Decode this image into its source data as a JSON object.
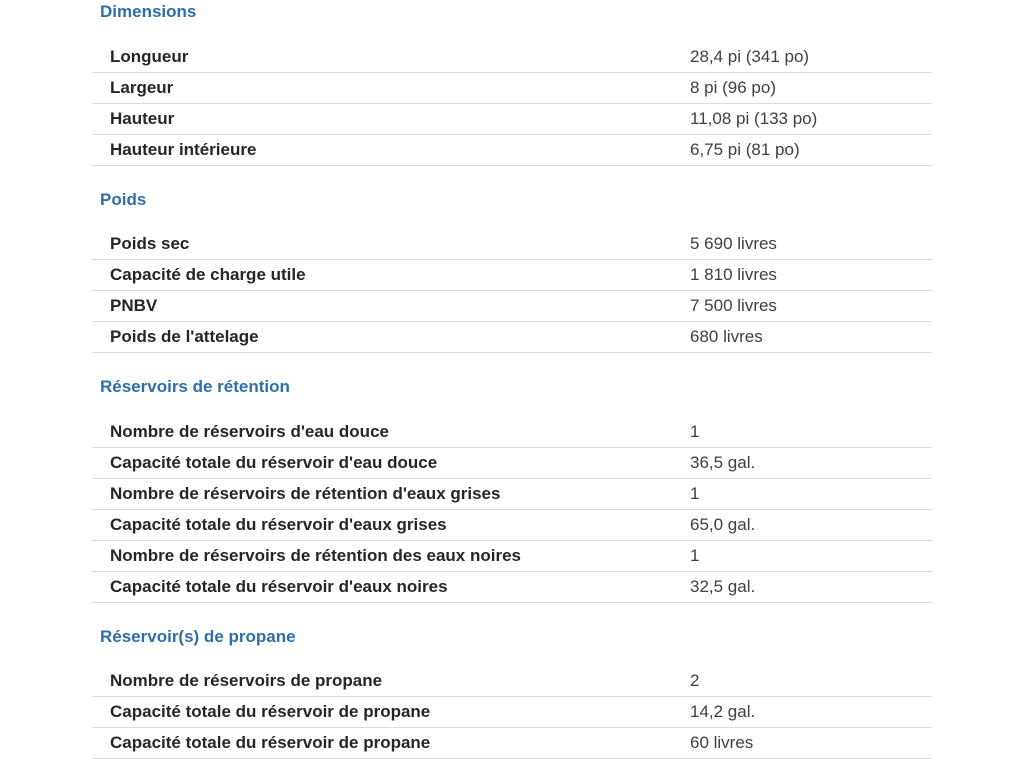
{
  "sections": [
    {
      "title": "Dimensions",
      "rows": [
        {
          "label": "Longueur",
          "value": "28,4 pi (341 po)"
        },
        {
          "label": "Largeur",
          "value": "8 pi (96 po)"
        },
        {
          "label": "Hauteur",
          "value": "11,08 pi (133 po)"
        },
        {
          "label": "Hauteur intérieure",
          "value": "6,75 pi (81 po)"
        }
      ]
    },
    {
      "title": "Poids",
      "rows": [
        {
          "label": "Poids sec",
          "value": "5 690 livres"
        },
        {
          "label": "Capacité de charge utile",
          "value": "1 810 livres"
        },
        {
          "label": "PNBV",
          "value": "7 500 livres"
        },
        {
          "label": "Poids de l'attelage",
          "value": "680 livres"
        }
      ]
    },
    {
      "title": "Réservoirs de rétention",
      "rows": [
        {
          "label": "Nombre de réservoirs d'eau douce",
          "value": "1"
        },
        {
          "label": "Capacité totale du réservoir d'eau douce",
          "value": "36,5 gal."
        },
        {
          "label": "Nombre de réservoirs de rétention d'eaux grises",
          "value": "1"
        },
        {
          "label": "Capacité totale du réservoir d'eaux grises",
          "value": "65,0 gal."
        },
        {
          "label": "Nombre de réservoirs de rétention des eaux noires",
          "value": "1"
        },
        {
          "label": "Capacité totale du réservoir d'eaux noires",
          "value": "32,5 gal."
        }
      ]
    },
    {
      "title": "Réservoir(s) de propane",
      "rows": [
        {
          "label": "Nombre de réservoirs de propane",
          "value": "2"
        },
        {
          "label": "Capacité totale du réservoir de propane",
          "value": "14,2 gal."
        },
        {
          "label": "Capacité totale du réservoir de propane",
          "value": "60 livres"
        }
      ]
    }
  ]
}
